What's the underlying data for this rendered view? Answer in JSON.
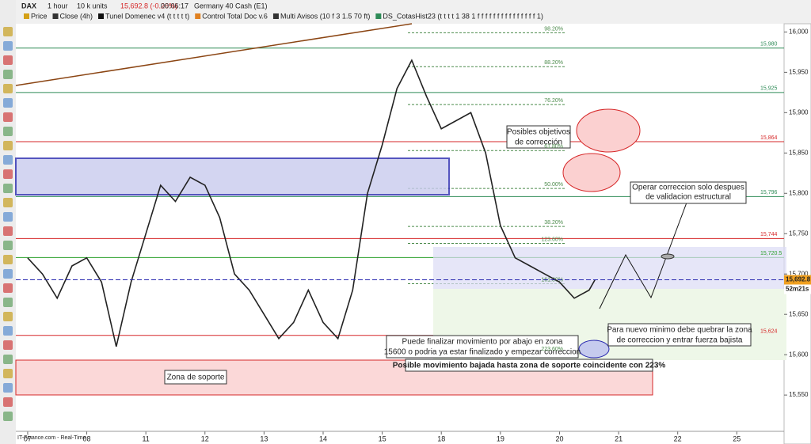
{
  "toolbar": {
    "symbol": "DAX",
    "timeframe": "1 hour",
    "units": "10 k units",
    "quote": "15,692.8 (-0.26%)",
    "timer": "00:06:17",
    "instrument": "Germany 40 Cash (E1)"
  },
  "indicators": [
    "Price",
    "Close (4h)",
    "Tunel Domenec v4 (t t t t t)",
    "Control Total Doc v.6",
    "Multi Avisos (10 f 3 1.5 70 ft)",
    "DS_CotasHist23 (t t t t 1 38 1 f f f f f f f f f f f f f f f 1)"
  ],
  "footer": "IT-Finance.com - Real-Time",
  "chart_data": {
    "type": "line",
    "x": [
      0,
      0.25,
      0.5,
      0.75,
      1,
      1.25,
      1.5,
      1.75,
      2,
      2.25,
      2.5,
      2.75,
      3,
      3.25,
      3.5,
      3.75,
      4,
      4.25,
      4.5,
      4.75,
      5,
      5.25,
      5.5,
      5.75,
      6,
      6.25,
      6.5,
      6.75,
      7,
      7.25,
      7.5,
      7.75,
      8,
      8.25,
      8.5,
      8.75,
      9,
      9.25,
      9.5,
      9.6
    ],
    "series": [
      {
        "name": "Price",
        "color": "#222222",
        "values": [
          15720,
          15700,
          15670,
          15710,
          15720,
          15690,
          15610,
          15690,
          15750,
          15810,
          15790,
          15820,
          15810,
          15770,
          15700,
          15680,
          15650,
          15620,
          15640,
          15680,
          15640,
          15620,
          15680,
          15800,
          15860,
          15930,
          15965,
          15920,
          15880,
          15890,
          15900,
          15850,
          15760,
          15720,
          15710,
          15700,
          15690,
          15670,
          15680,
          15692.8
        ]
      }
    ],
    "xlim": [
      -0.2,
      12.8
    ],
    "xticks": [
      {
        "value": 0,
        "label": "07"
      },
      {
        "value": 1,
        "label": "08"
      },
      {
        "value": 2,
        "label": "11"
      },
      {
        "value": 3,
        "label": "12"
      },
      {
        "value": 4,
        "label": "13"
      },
      {
        "value": 5,
        "label": "14"
      },
      {
        "value": 6,
        "label": "15"
      },
      {
        "value": 7,
        "label": "18"
      },
      {
        "value": 8,
        "label": "19"
      },
      {
        "value": 9,
        "label": "20"
      },
      {
        "value": 10,
        "label": "21"
      },
      {
        "value": 11,
        "label": "22"
      },
      {
        "value": 12,
        "label": "25"
      }
    ],
    "ylim": [
      15505,
      16020
    ],
    "yticks": [
      {
        "value": 15550,
        "label": "15,550"
      },
      {
        "value": 15600,
        "label": "15,600"
      },
      {
        "value": 15650,
        "label": "15,650"
      },
      {
        "value": 15700,
        "label": "15,700"
      },
      {
        "value": 15750,
        "label": "15,750"
      },
      {
        "value": 15800,
        "label": "15,800"
      },
      {
        "value": 15850,
        "label": "15,850"
      },
      {
        "value": 15900,
        "label": "15,900"
      },
      {
        "value": 15950,
        "label": "15,950"
      },
      {
        "value": 16000,
        "label": "16,000"
      }
    ],
    "levels": [
      {
        "label": "15,980",
        "value": 15980,
        "color": "#2e8b57"
      },
      {
        "label": "15,925",
        "value": 15925,
        "color": "#2e8b57"
      },
      {
        "label": "15,864",
        "value": 15864,
        "color": "#d62728"
      },
      {
        "label": "15,796",
        "value": 15796,
        "color": "#2e8b57"
      },
      {
        "label": "15,744",
        "value": 15744,
        "color": "#d62728"
      },
      {
        "label": "15,720.5",
        "value": 15720.5,
        "color": "#2ca02c"
      },
      {
        "label": "15,624",
        "value": 15624,
        "color": "#d62728"
      }
    ],
    "fib_levels": [
      {
        "label": "98.20%",
        "value": 15999
      },
      {
        "label": "88.20%",
        "value": 15957
      },
      {
        "label": "76.20%",
        "value": 15910
      },
      {
        "label": "61.80%",
        "value": 15853
      },
      {
        "label": "50.00%",
        "value": 15806
      },
      {
        "label": "38.20%",
        "value": 15759
      },
      {
        "label": "123.60%",
        "value": 15738
      },
      {
        "label": "161.80%",
        "value": 15688
      },
      {
        "label": "223.60%",
        "value": 15602
      }
    ],
    "last_price": {
      "label": "15,692.8",
      "value": 15692.8,
      "countdown": "52m21s"
    },
    "annotations": {
      "targets": [
        "Posibles objetivos",
        "de corrección"
      ],
      "validate": [
        "Operar correccion solo despues",
        "de validacion estructural"
      ],
      "new_low": [
        "Para nuevo minimo debe quebrar la zona",
        "de correccion y entrar fuerza bajista"
      ],
      "finish": [
        "Puede finalizar movimiento por abajo en zona",
        "15600 o podria ya estar finalizado y empezar correccion"
      ],
      "support_move": "Posible movimiento bajada hasta zona de soporte coincidente con 223%",
      "support": "Zona de soporte"
    }
  }
}
